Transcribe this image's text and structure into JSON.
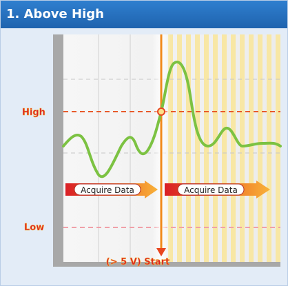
{
  "header": {
    "title": "1. Above High"
  },
  "levels": {
    "high": "High",
    "low": "Low"
  },
  "acquire": {
    "before": "Acquire Data",
    "after": "Acquire Data"
  },
  "trigger": {
    "condition": "(> 5 V)",
    "start": "Start"
  },
  "colors": {
    "header": "#1f63ae",
    "wave": "#7cc242",
    "threshold": "#e85a2b",
    "trigger_line": "#f08a1c",
    "arrow_red": "#d91f26",
    "arrow_orange": "#f5a623",
    "stripes": "#f8e7a5"
  }
}
